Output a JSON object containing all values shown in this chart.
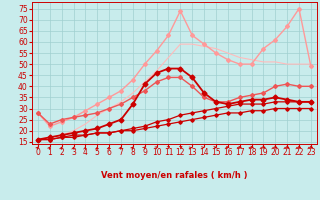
{
  "xlabel": "Vent moyen/en rafales ( km/h )",
  "bg_color": "#c8ecec",
  "grid_color": "#a0d0d0",
  "x": [
    0,
    1,
    2,
    3,
    4,
    5,
    6,
    7,
    8,
    9,
    10,
    11,
    12,
    13,
    14,
    15,
    16,
    17,
    18,
    19,
    20,
    21,
    22,
    23
  ],
  "lines": [
    {
      "y": [
        16,
        16,
        17,
        18,
        18,
        19,
        19,
        20,
        20,
        21,
        22,
        23,
        24,
        25,
        26,
        27,
        28,
        28,
        29,
        29,
        30,
        30,
        30,
        30
      ],
      "color": "#cc0000",
      "lw": 0.9,
      "marker": "D",
      "ms": 1.8,
      "zorder": 5
    },
    {
      "y": [
        16,
        16,
        17,
        17,
        18,
        19,
        19,
        20,
        21,
        22,
        24,
        25,
        27,
        28,
        29,
        30,
        31,
        32,
        32,
        32,
        33,
        33,
        33,
        33
      ],
      "color": "#cc0000",
      "lw": 0.9,
      "marker": "D",
      "ms": 1.8,
      "zorder": 5
    },
    {
      "y": [
        16,
        17,
        18,
        19,
        20,
        21,
        23,
        25,
        32,
        41,
        46,
        48,
        48,
        44,
        37,
        33,
        32,
        33,
        34,
        34,
        35,
        34,
        33,
        33
      ],
      "color": "#cc0000",
      "lw": 1.3,
      "marker": "D",
      "ms": 2.5,
      "zorder": 6
    },
    {
      "y": [
        28,
        23,
        25,
        26,
        27,
        28,
        30,
        32,
        35,
        38,
        42,
        44,
        44,
        40,
        35,
        33,
        33,
        35,
        36,
        37,
        40,
        41,
        40,
        40
      ],
      "color": "#ee5555",
      "lw": 1.0,
      "marker": "D",
      "ms": 2.0,
      "zorder": 4
    },
    {
      "y": [
        28,
        22,
        24,
        26,
        29,
        32,
        35,
        38,
        43,
        50,
        56,
        63,
        74,
        63,
        59,
        55,
        52,
        50,
        50,
        57,
        61,
        67,
        75,
        49
      ],
      "color": "#ff9999",
      "lw": 1.0,
      "marker": "D",
      "ms": 2.0,
      "zorder": 3
    },
    {
      "y": [
        16,
        17,
        18,
        20,
        23,
        27,
        30,
        33,
        37,
        42,
        47,
        53,
        59,
        59,
        58,
        57,
        55,
        53,
        52,
        51,
        51,
        50,
        50,
        50
      ],
      "color": "#ffbbbb",
      "lw": 0.8,
      "marker": null,
      "ms": 0,
      "zorder": 2
    }
  ],
  "ylim": [
    14,
    78
  ],
  "xlim": [
    -0.5,
    23.5
  ],
  "yticks": [
    15,
    20,
    25,
    30,
    35,
    40,
    45,
    50,
    55,
    60,
    65,
    70,
    75
  ],
  "xticks": [
    0,
    1,
    2,
    3,
    4,
    5,
    6,
    7,
    8,
    9,
    10,
    11,
    12,
    13,
    14,
    15,
    16,
    17,
    18,
    19,
    20,
    21,
    22,
    23
  ],
  "arrow_angles_deg": [
    80,
    82,
    85,
    87,
    87,
    87,
    85,
    83,
    80,
    78,
    72,
    68,
    62,
    56,
    50,
    42,
    28,
    16,
    8,
    3,
    1,
    0,
    0,
    0
  ],
  "tick_fontsize": 5.5,
  "label_fontsize": 6.0
}
